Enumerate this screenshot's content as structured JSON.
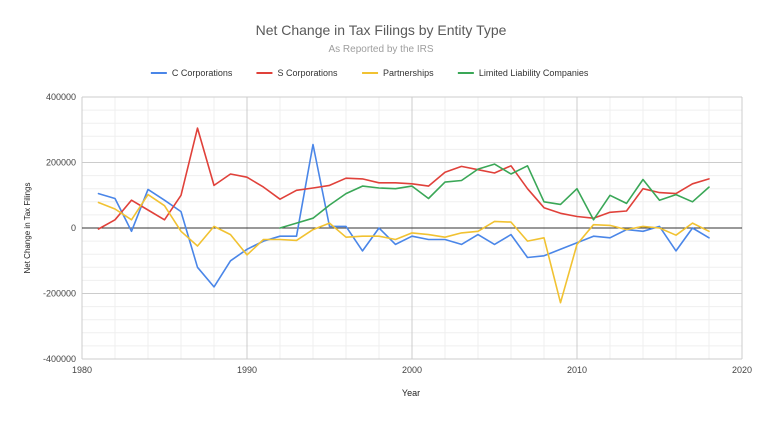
{
  "chart_data": {
    "type": "line",
    "title": "Net Change in Tax Filings by Entity Type",
    "subtitle": "As Reported by the IRS",
    "xlabel": "Year",
    "ylabel": "Net Change in Tax Filings",
    "xlim": [
      1980,
      2020
    ],
    "ylim": [
      -400000,
      400000
    ],
    "x_ticks": [
      1980,
      1990,
      2000,
      2010,
      2020
    ],
    "y_ticks": [
      -400000,
      -200000,
      0,
      200000,
      400000
    ],
    "y_tick_labels": [
      "-400000",
      "-200000",
      "0",
      "200000",
      "400000"
    ],
    "grid": true,
    "legend_position": "top",
    "series": [
      {
        "name": "C Corporations",
        "color": "#4a86e8",
        "x": [
          1981,
          1982,
          1983,
          1984,
          1985,
          1986,
          1987,
          1988,
          1989,
          1990,
          1991,
          1992,
          1993,
          1994,
          1995,
          1996,
          1997,
          1998,
          1999,
          2000,
          2001,
          2002,
          2003,
          2004,
          2005,
          2006,
          2007,
          2008,
          2009,
          2010,
          2011,
          2012,
          2013,
          2014,
          2015,
          2016,
          2017,
          2018
        ],
        "values": [
          105000,
          90000,
          -10000,
          118000,
          85000,
          50000,
          -120000,
          -180000,
          -100000,
          -65000,
          -40000,
          -25000,
          -25000,
          255000,
          5000,
          5000,
          -70000,
          0,
          -50000,
          -25000,
          -35000,
          -35000,
          -50000,
          -20000,
          -50000,
          -20000,
          -90000,
          -85000,
          -65000,
          -45000,
          -25000,
          -30000,
          -5000,
          -10000,
          5000,
          -70000,
          0,
          -30000
        ]
      },
      {
        "name": "S Corporations",
        "color": "#e0413a",
        "x": [
          1981,
          1982,
          1983,
          1984,
          1985,
          1986,
          1987,
          1988,
          1989,
          1990,
          1991,
          1992,
          1993,
          1994,
          1995,
          1996,
          1997,
          1998,
          1999,
          2000,
          2001,
          2002,
          2003,
          2004,
          2005,
          2006,
          2007,
          2008,
          2009,
          2010,
          2011,
          2012,
          2013,
          2014,
          2015,
          2016,
          2017,
          2018
        ],
        "values": [
          -3000,
          25000,
          85000,
          55000,
          25000,
          100000,
          305000,
          130000,
          165000,
          155000,
          125000,
          88000,
          115000,
          122000,
          130000,
          152000,
          150000,
          138000,
          138000,
          135000,
          128000,
          170000,
          188000,
          178000,
          168000,
          190000,
          120000,
          62000,
          45000,
          35000,
          30000,
          48000,
          52000,
          120000,
          108000,
          105000,
          135000,
          150000
        ]
      },
      {
        "name": "Partnerships",
        "color": "#f1c232",
        "x": [
          1981,
          1982,
          1983,
          1984,
          1985,
          1986,
          1987,
          1988,
          1989,
          1990,
          1991,
          1992,
          1993,
          1994,
          1995,
          1996,
          1997,
          1998,
          1999,
          2000,
          2001,
          2002,
          2003,
          2004,
          2005,
          2006,
          2007,
          2008,
          2009,
          2010,
          2011,
          2012,
          2013,
          2014,
          2015,
          2016,
          2017,
          2018
        ],
        "values": [
          78000,
          58000,
          25000,
          102000,
          68000,
          -10000,
          -55000,
          5000,
          -20000,
          -82000,
          -35000,
          -35000,
          -38000,
          -5000,
          15000,
          -28000,
          -25000,
          -25000,
          -35000,
          -15000,
          -20000,
          -28000,
          -15000,
          -10000,
          20000,
          18000,
          -40000,
          -30000,
          -228000,
          -50000,
          10000,
          8000,
          -5000,
          5000,
          0,
          -22000,
          15000,
          -10000
        ]
      },
      {
        "name": "Limited Liability Companies",
        "color": "#3aa757",
        "x": [
          1992,
          1993,
          1994,
          1995,
          1996,
          1997,
          1998,
          1999,
          2000,
          2001,
          2002,
          2003,
          2004,
          2005,
          2006,
          2007,
          2008,
          2009,
          2010,
          2011,
          2012,
          2013,
          2014,
          2015,
          2016,
          2017,
          2018
        ],
        "values": [
          0,
          15000,
          30000,
          70000,
          105000,
          128000,
          122000,
          120000,
          128000,
          90000,
          140000,
          145000,
          180000,
          195000,
          165000,
          190000,
          80000,
          72000,
          120000,
          25000,
          100000,
          75000,
          148000,
          85000,
          102000,
          80000,
          125000
        ]
      }
    ]
  }
}
